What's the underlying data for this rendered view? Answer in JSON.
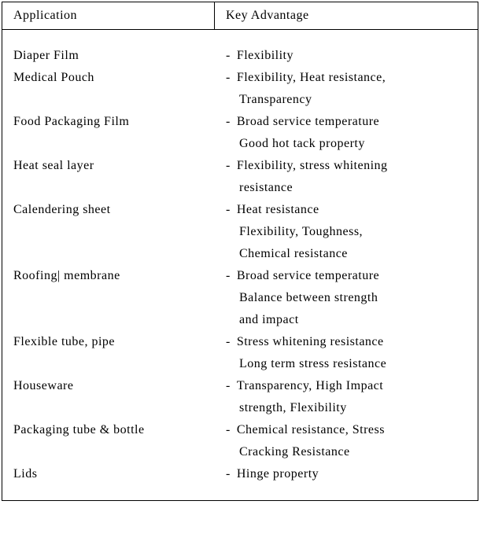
{
  "table": {
    "headers": {
      "col1": "Application",
      "col2": "Key Advantage"
    },
    "colors": {
      "border": "#000000",
      "background": "#ffffff",
      "text": "#000000"
    },
    "rows": [
      {
        "application": "Diaper Film",
        "advantage_lines": [
          "Flexibility"
        ]
      },
      {
        "application": "Medical Pouch",
        "advantage_lines": [
          "Flexibility, Heat resistance,",
          "Transparency"
        ]
      },
      {
        "application": "Food Packaging Film",
        "advantage_lines": [
          "Broad service temperature",
          "Good hot tack property"
        ]
      },
      {
        "application": "Heat seal layer",
        "advantage_lines": [
          "Flexibility, stress whitening",
          "resistance"
        ]
      },
      {
        "application": "Calendering sheet",
        "advantage_lines": [
          "Heat resistance",
          "Flexibility, Toughness,",
          "Chemical resistance"
        ]
      },
      {
        "application": "Roofing| membrane",
        "advantage_lines": [
          "Broad service temperature",
          "Balance between strength",
          "and impact"
        ]
      },
      {
        "application": "Flexible tube, pipe",
        "advantage_lines": [
          "Stress whitening resistance",
          "Long term stress resistance"
        ]
      },
      {
        "application": "Houseware",
        "advantage_lines": [
          "Transparency, High Impact",
          "strength, Flexibility"
        ]
      },
      {
        "application": "Packaging tube & bottle",
        "advantage_lines": [
          "Chemical resistance, Stress",
          "Cracking Resistance"
        ]
      },
      {
        "application": "Lids",
        "advantage_lines": [
          "Hinge property"
        ]
      }
    ],
    "bullet": "-"
  }
}
